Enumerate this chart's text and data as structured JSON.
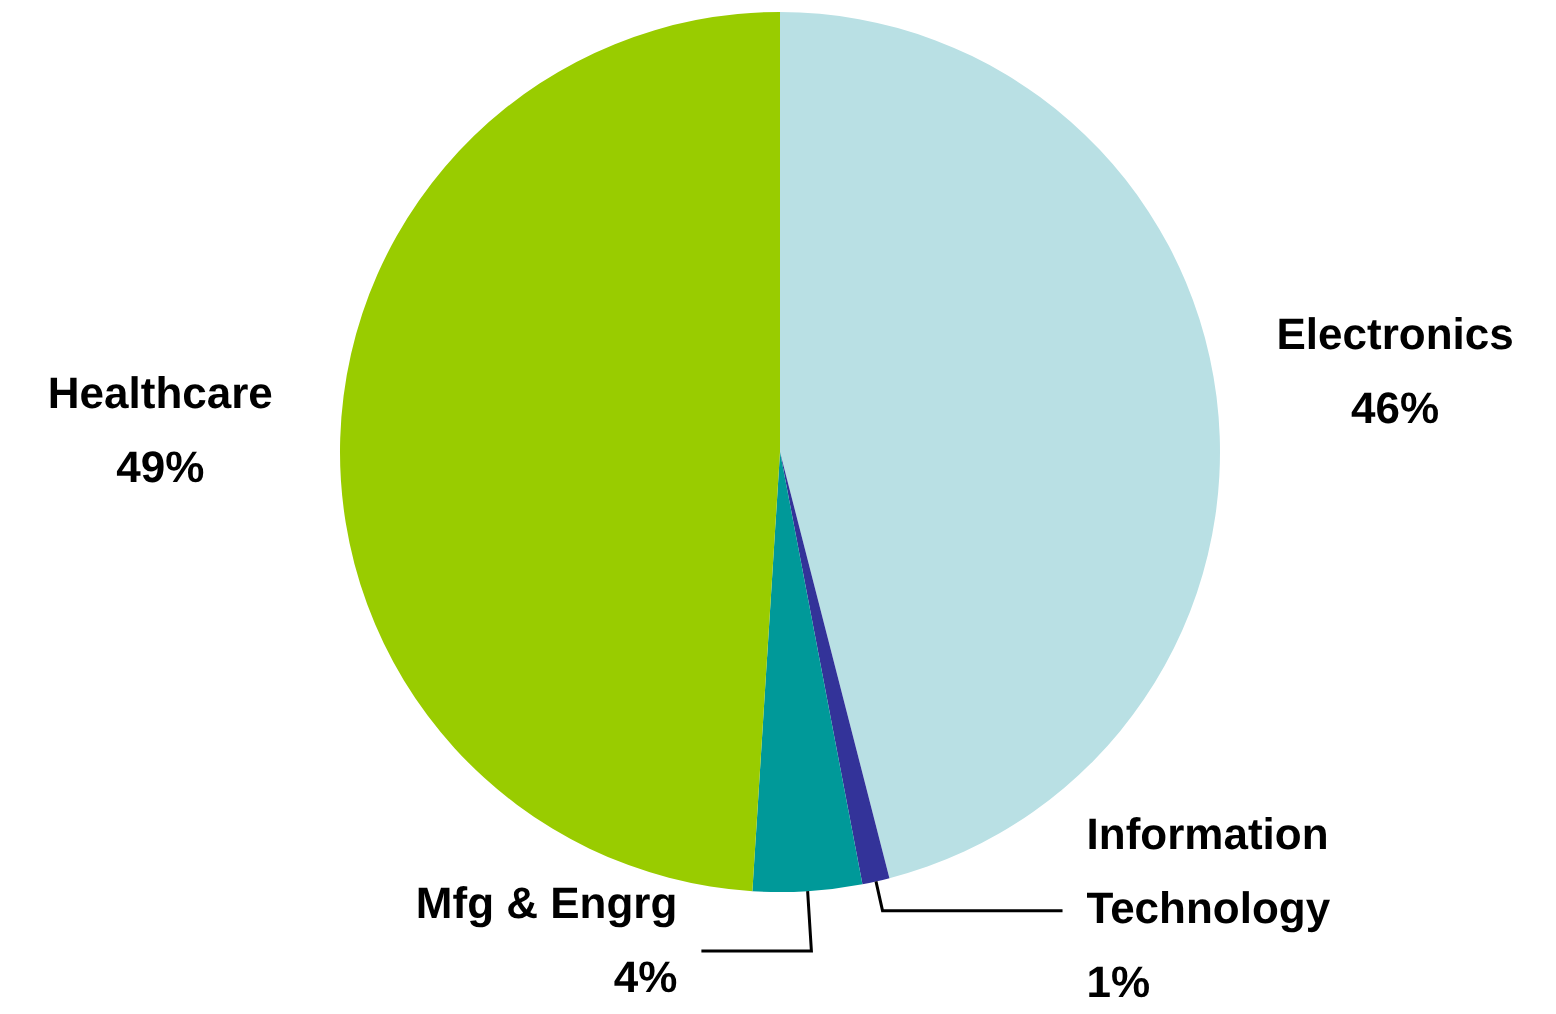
{
  "chart_data": {
    "type": "pie",
    "categories": [
      "Electronics",
      "Information Technology",
      "Mfg & Engrg",
      "Healthcare"
    ],
    "values": [
      46,
      1,
      4,
      49
    ],
    "value_labels": [
      "46%",
      "1%",
      "4%",
      "49%"
    ],
    "colors": [
      "#b9e0e4",
      "#333399",
      "#009999",
      "#99cc00"
    ],
    "legend": false
  }
}
